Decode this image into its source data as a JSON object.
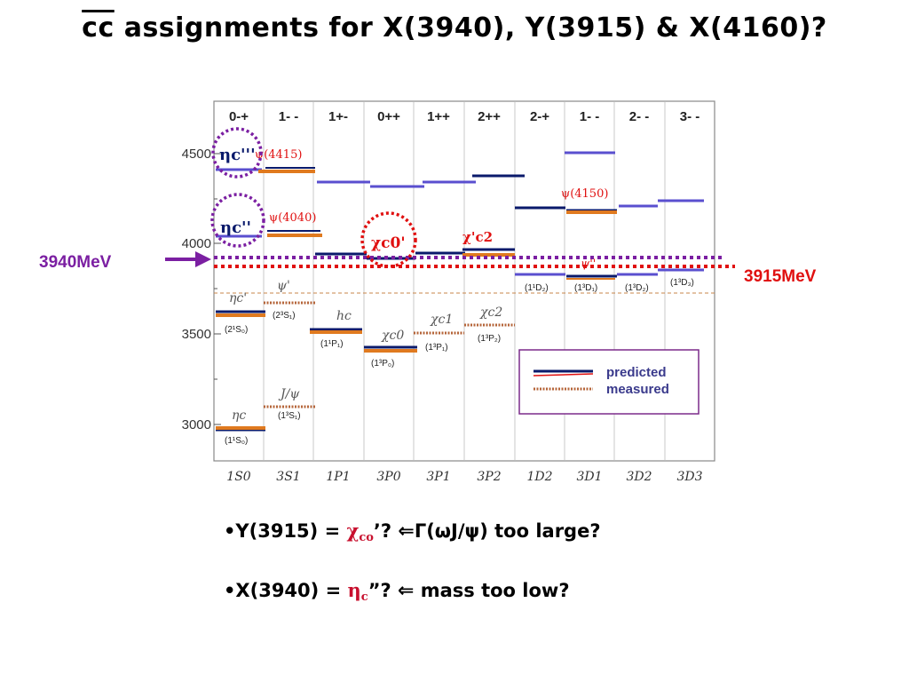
{
  "slide": {
    "title_overline": "cc",
    "title_rest": " assignments for X(3940), Y(3915) & X(4160)?"
  },
  "diagram": {
    "jpc_labels": [
      "0-+",
      "1- -",
      "1+-",
      "0++",
      "1++",
      "2++",
      "2-+",
      "1- -",
      "2- -",
      "3- -"
    ],
    "wave_labels": [
      "1S0",
      "3S1",
      "1P1",
      "3P0",
      "3P1",
      "3P2",
      "1D2",
      "3D1",
      "3D2",
      "3D3"
    ],
    "y_ticks": [
      "4500",
      "4000",
      "3500",
      "3000"
    ],
    "state_labels": [
      {
        "id": "psi4415",
        "text": "ψ(4415)"
      },
      {
        "id": "psi4040",
        "text": "ψ(4040)"
      },
      {
        "id": "psi4150",
        "text": "ψ(4150)"
      },
      {
        "id": "psi2s_sym",
        "text": "ψ'"
      },
      {
        "id": "etac2s_sym",
        "text": "ηc'"
      },
      {
        "id": "hc",
        "text": "hc"
      },
      {
        "id": "chic0",
        "text": "χc0"
      },
      {
        "id": "chic1",
        "text": "χc1"
      },
      {
        "id": "chic2",
        "text": "χc2"
      },
      {
        "id": "jpsi",
        "text": "J/ψ"
      },
      {
        "id": "etac",
        "text": "ηc"
      },
      {
        "id": "psi_pp",
        "text": "ψ''"
      }
    ],
    "spectro_labels": [
      {
        "id": "s21S0",
        "text": "(2¹S₀)"
      },
      {
        "id": "s23S1",
        "text": "(2³S₁)"
      },
      {
        "id": "s11P1",
        "text": "(1¹P₁)"
      },
      {
        "id": "s13P0",
        "text": "(1³P₀)"
      },
      {
        "id": "s13P1",
        "text": "(1³P₁)"
      },
      {
        "id": "s13P2",
        "text": "(1³P₂)"
      },
      {
        "id": "s11D2",
        "text": "(1¹D₂)"
      },
      {
        "id": "s13D1",
        "text": "(1³D₁)"
      },
      {
        "id": "s13D2",
        "text": "(1³D₂)"
      },
      {
        "id": "s13D3",
        "text": "(1³D₃)"
      },
      {
        "id": "s11S0",
        "text": "(1¹S₀)"
      },
      {
        "id": "s13S1",
        "text": "(1³S₁)"
      }
    ],
    "legend": {
      "predicted": "predicted",
      "measured": "measured"
    },
    "annotations": {
      "mev3940": "3940MeV",
      "mev3915": "3915MeV",
      "etac3": "ηc'''",
      "etac2": "ηc''",
      "chic0_prime": "χc0'",
      "chic2_prime": "χ'c2"
    },
    "colors": {
      "purple": "#7b1fa2",
      "red": "#e01010",
      "navy": "#0a1a6b",
      "orange": "#e07a1f",
      "blue_purple": "#5a4fcf"
    }
  },
  "bullets": [
    {
      "prefix": "•Y(3915) = ",
      "greek": "χ",
      "sub": "co",
      "mid": "’? ",
      "arrow": "⇐",
      "rest": "Γ(ωJ/ψ) too large?"
    },
    {
      "prefix": "•X(3940) = ",
      "greek": "η",
      "sub": "c",
      "mid": "”?  ",
      "arrow": "⇐",
      "rest": " mass too low?"
    }
  ]
}
